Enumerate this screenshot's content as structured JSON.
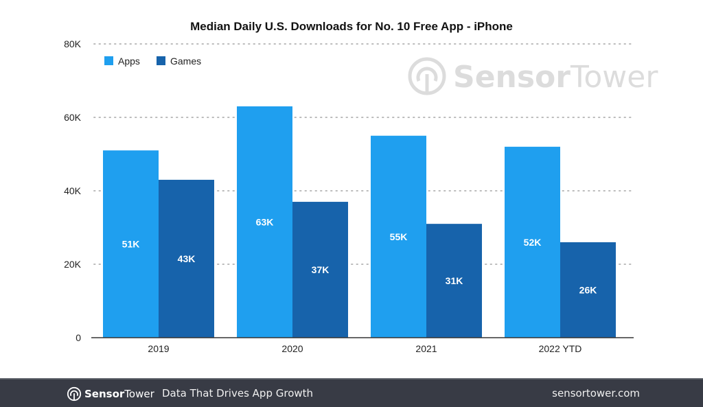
{
  "chart_data": {
    "type": "bar",
    "title": "Median Daily U.S. Downloads for No. 10 Free App - iPhone",
    "xlabel": "",
    "ylabel": "",
    "categories": [
      "2019",
      "2020",
      "2021",
      "2022 YTD"
    ],
    "series": [
      {
        "name": "Apps",
        "color": "#1f9fef",
        "values": [
          51000,
          63000,
          55000,
          52000
        ],
        "labels": [
          "51K",
          "63K",
          "55K",
          "52K"
        ]
      },
      {
        "name": "Games",
        "color": "#1763ab",
        "values": [
          43000,
          37000,
          31000,
          26000
        ],
        "labels": [
          "43K",
          "37K",
          "31K",
          "26K"
        ]
      }
    ],
    "ylim": [
      0,
      80000
    ],
    "yticks": [
      0,
      20000,
      40000,
      60000,
      80000
    ],
    "ytick_labels": [
      "0",
      "20K",
      "40K",
      "60K",
      "80K"
    ],
    "grid": true,
    "legend_position": "top-left"
  },
  "watermark": {
    "brand_bold": "Sensor",
    "brand_light": "Tower"
  },
  "footer": {
    "brand_bold": "Sensor",
    "brand_light": "Tower",
    "tagline": "Data That Drives App Growth",
    "url": "sensortower.com"
  }
}
